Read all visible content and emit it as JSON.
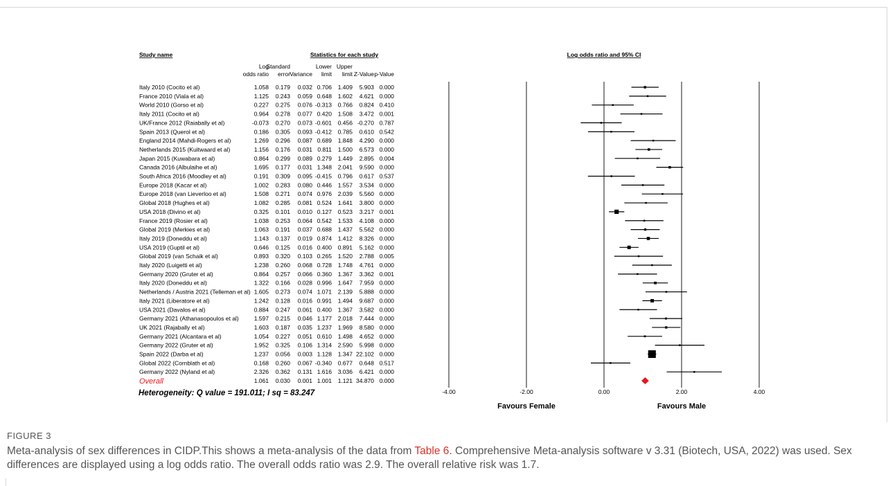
{
  "chart_data": {
    "type": "forest",
    "headers": {
      "study_name": "Study name",
      "stats_group": "Statistics for each study",
      "plot_title": "Log odds ratio and 95% CI",
      "columns": [
        [
          "Log",
          "odds ratio"
        ],
        [
          "Standard",
          "error"
        ],
        [
          "",
          "Variance"
        ],
        [
          "Lower",
          "limit"
        ],
        [
          "Upper",
          "limit"
        ],
        [
          "",
          "Z-Value"
        ],
        [
          "",
          "p-Value"
        ]
      ]
    },
    "studies": [
      {
        "name": "Italy 2010 (Cocito et al)",
        "values": [
          "1.058",
          "0.179",
          "0.032",
          "0.706",
          "1.409",
          "5.903",
          "0.000"
        ],
        "or": 1.058,
        "lo": 0.706,
        "hi": 1.409,
        "se": 0.179
      },
      {
        "name": "France 2010 (Viala et al)",
        "values": [
          "1.125",
          "0.243",
          "0.059",
          "0.648",
          "1.602",
          "4.621",
          "0.000"
        ],
        "or": 1.125,
        "lo": 0.648,
        "hi": 1.602,
        "se": 0.243
      },
      {
        "name": "World 2010 (Gorso et al)",
        "values": [
          "0.227",
          "0.275",
          "0.076",
          "-0.313",
          "0.766",
          "0.824",
          "0.410"
        ],
        "or": 0.227,
        "lo": -0.313,
        "hi": 0.766,
        "se": 0.275
      },
      {
        "name": "Italy 2011 (Cocito et al)",
        "values": [
          "0.964",
          "0.278",
          "0.077",
          "0.420",
          "1.508",
          "3.472",
          "0.001"
        ],
        "or": 0.964,
        "lo": 0.42,
        "hi": 1.508,
        "se": 0.278
      },
      {
        "name": "UK/France 2012 (Raiabally et al)",
        "values": [
          "-0.073",
          "0.270",
          "0.073",
          "-0.601",
          "0.456",
          "-0.270",
          "0.787"
        ],
        "or": -0.073,
        "lo": -0.601,
        "hi": 0.456,
        "se": 0.27
      },
      {
        "name": "Spain 2013 (Querol et al)",
        "values": [
          "0.186",
          "0.305",
          "0.093",
          "-0.412",
          "0.785",
          "0.610",
          "0.542"
        ],
        "or": 0.186,
        "lo": -0.412,
        "hi": 0.785,
        "se": 0.305
      },
      {
        "name": "England 2014 (Mahdi-Rogers et al)",
        "values": [
          "1.269",
          "0.296",
          "0.087",
          "0.689",
          "1.848",
          "4.290",
          "0.000"
        ],
        "or": 1.269,
        "lo": 0.689,
        "hi": 1.848,
        "se": 0.296
      },
      {
        "name": "Netherlands 2015 (Kuitwaard et al)",
        "values": [
          "1.156",
          "0.176",
          "0.031",
          "0.811",
          "1.500",
          "6.573",
          "0.000"
        ],
        "or": 1.156,
        "lo": 0.811,
        "hi": 1.5,
        "se": 0.176
      },
      {
        "name": "Japan 2015 (Kuwabara et al)",
        "values": [
          "0.864",
          "0.299",
          "0.089",
          "0.279",
          "1.449",
          "2.895",
          "0.004"
        ],
        "or": 0.864,
        "lo": 0.279,
        "hi": 1.449,
        "se": 0.299
      },
      {
        "name": "Canada 2016 (Albulaihe et al)",
        "values": [
          "1.695",
          "0.177",
          "0.031",
          "1.348",
          "2.041",
          "9.590",
          "0.000"
        ],
        "or": 1.695,
        "lo": 1.348,
        "hi": 2.041,
        "se": 0.177
      },
      {
        "name": "South Africa 2016 (Moodley et al)",
        "values": [
          "0.191",
          "0.309",
          "0.095",
          "-0.415",
          "0.796",
          "0.617",
          "0.537"
        ],
        "or": 0.191,
        "lo": -0.415,
        "hi": 0.796,
        "se": 0.309
      },
      {
        "name": "Europe 2018 (Kacar et al)",
        "values": [
          "1.002",
          "0.283",
          "0.080",
          "0.446",
          "1.557",
          "3.534",
          "0.000"
        ],
        "or": 1.002,
        "lo": 0.446,
        "hi": 1.557,
        "se": 0.283
      },
      {
        "name": "Europe 2018 (van Lieverloo et al)",
        "values": [
          "1.508",
          "0.271",
          "0.074",
          "0.976",
          "2.039",
          "5.560",
          "0.000"
        ],
        "or": 1.508,
        "lo": 0.976,
        "hi": 2.039,
        "se": 0.271
      },
      {
        "name": "Global 2018 (Hughes et al)",
        "values": [
          "1.082",
          "0.285",
          "0.081",
          "0.524",
          "1.641",
          "3.800",
          "0.000"
        ],
        "or": 1.082,
        "lo": 0.524,
        "hi": 1.641,
        "se": 0.285
      },
      {
        "name": "USA 2018 (Divino et al)",
        "values": [
          "0.325",
          "0.101",
          "0.010",
          "0.127",
          "0.523",
          "3.217",
          "0.001"
        ],
        "or": 0.325,
        "lo": 0.127,
        "hi": 0.523,
        "se": 0.101
      },
      {
        "name": "France 2019 (Rosier et al)",
        "values": [
          "1.038",
          "0.253",
          "0.064",
          "0.542",
          "1.533",
          "4.108",
          "0.000"
        ],
        "or": 1.038,
        "lo": 0.542,
        "hi": 1.533,
        "se": 0.253
      },
      {
        "name": "Global 2019 (Merkies et al)",
        "values": [
          "1.063",
          "0.191",
          "0.037",
          "0.688",
          "1.437",
          "5.562",
          "0.000"
        ],
        "or": 1.063,
        "lo": 0.688,
        "hi": 1.437,
        "se": 0.191
      },
      {
        "name": "Italy 2019 (Doneddu et al)",
        "values": [
          "1.143",
          "0.137",
          "0.019",
          "0.874",
          "1.412",
          "8.326",
          "0.000"
        ],
        "or": 1.143,
        "lo": 0.874,
        "hi": 1.412,
        "se": 0.137
      },
      {
        "name": "USA 2019 (Guptil et al)",
        "values": [
          "0.646",
          "0.125",
          "0.016",
          "0.400",
          "0.891",
          "5.162",
          "0.000"
        ],
        "or": 0.646,
        "lo": 0.4,
        "hi": 0.891,
        "se": 0.125
      },
      {
        "name": "Global 2019 (van Schaik et al)",
        "values": [
          "0.893",
          "0.320",
          "0.103",
          "0.265",
          "1.520",
          "2.788",
          "0.005"
        ],
        "or": 0.893,
        "lo": 0.265,
        "hi": 1.52,
        "se": 0.32
      },
      {
        "name": "Italy 2020 (Luigetti et al)",
        "values": [
          "1.238",
          "0.260",
          "0.068",
          "0.728",
          "1.748",
          "4.761",
          "0.000"
        ],
        "or": 1.238,
        "lo": 0.728,
        "hi": 1.748,
        "se": 0.26
      },
      {
        "name": "Germany 2020 (Gruter et al)",
        "values": [
          "0.864",
          "0.257",
          "0.066",
          "0.360",
          "1.367",
          "3.362",
          "0.001"
        ],
        "or": 0.864,
        "lo": 0.36,
        "hi": 1.367,
        "se": 0.257
      },
      {
        "name": "Italy 2020 (Doneddu et al)",
        "values": [
          "1.322",
          "0.166",
          "0.028",
          "0.996",
          "1.647",
          "7.959",
          "0.000"
        ],
        "or": 1.322,
        "lo": 0.996,
        "hi": 1.647,
        "se": 0.166
      },
      {
        "name": "Netherlands / Austria 2021 (Telleman et al)",
        "values": [
          "1.605",
          "0.273",
          "0.074",
          "1.071",
          "2.139",
          "5.888",
          "0.000"
        ],
        "or": 1.605,
        "lo": 1.071,
        "hi": 2.139,
        "se": 0.273
      },
      {
        "name": "Italy 2021 (Liberatore et al)",
        "values": [
          "1.242",
          "0.128",
          "0.016",
          "0.991",
          "1.494",
          "9.687",
          "0.000"
        ],
        "or": 1.242,
        "lo": 0.991,
        "hi": 1.494,
        "se": 0.128
      },
      {
        "name": "USA 2021 (Davalos et al)",
        "values": [
          "0.884",
          "0.247",
          "0.061",
          "0.400",
          "1.367",
          "3.582",
          "0.000"
        ],
        "or": 0.884,
        "lo": 0.4,
        "hi": 1.367,
        "se": 0.247
      },
      {
        "name": "Germany 2021 (Athanasopoulos et al)",
        "values": [
          "1.597",
          "0.215",
          "0.046",
          "1.177",
          "2.018",
          "7.444",
          "0.000"
        ],
        "or": 1.597,
        "lo": 1.177,
        "hi": 2.018,
        "se": 0.215
      },
      {
        "name": "UK 2021 (Rajabally et al)",
        "values": [
          "1.603",
          "0.187",
          "0.035",
          "1.237",
          "1.969",
          "8.580",
          "0.000"
        ],
        "or": 1.603,
        "lo": 1.237,
        "hi": 1.969,
        "se": 0.187
      },
      {
        "name": "Germany 2021 (Alcantara et al)",
        "values": [
          "1.054",
          "0.227",
          "0.051",
          "0.610",
          "1.498",
          "4.652",
          "0.000"
        ],
        "or": 1.054,
        "lo": 0.61,
        "hi": 1.498,
        "se": 0.227
      },
      {
        "name": "Germany 2022 (Gruter et al)",
        "values": [
          "1.952",
          "0.325",
          "0.106",
          "1.314",
          "2.590",
          "5.998",
          "0.000"
        ],
        "or": 1.952,
        "lo": 1.314,
        "hi": 2.59,
        "se": 0.325
      },
      {
        "name": "Spain 2022 (Darba et al)",
        "values": [
          "1.237",
          "0.056",
          "0.003",
          "1.128",
          "1.347",
          "22.102",
          "0.000"
        ],
        "or": 1.237,
        "lo": 1.128,
        "hi": 1.347,
        "se": 0.056
      },
      {
        "name": "Global 2022 (Cornblath et al)",
        "values": [
          "0.168",
          "0.260",
          "0.067",
          "-0.340",
          "0.677",
          "0.648",
          "0.517"
        ],
        "or": 0.168,
        "lo": -0.34,
        "hi": 0.677,
        "se": 0.26
      },
      {
        "name": "Germany 2022 (Nyland et al)",
        "values": [
          "2.326",
          "0.362",
          "0.131",
          "1.616",
          "3.036",
          "6.421",
          "0.000"
        ],
        "or": 2.326,
        "lo": 1.616,
        "hi": 3.036,
        "se": 0.362
      }
    ],
    "overall": {
      "name": "Overall",
      "values": [
        "1.061",
        "0.030",
        "0.001",
        "1.001",
        "1.121",
        "34.870",
        "0.000"
      ],
      "or": 1.061,
      "lo": 1.001,
      "hi": 1.121,
      "color": "#e8161b"
    },
    "heterogeneity": "Heterogeneity: Q value = 191.011; I sq = 83.247",
    "x_axis": {
      "range": [
        -4,
        4
      ],
      "ticks": [
        -4,
        -2,
        0,
        2,
        4
      ],
      "tick_labels": [
        "-4.00",
        "-2.00",
        "0.00",
        "2.00",
        "4.00"
      ]
    },
    "favours_left": "Favours Female",
    "favours_right": "Favours Male"
  },
  "caption": {
    "label": "FIGURE 3",
    "text_before_link": "Meta-analysis of sex differences in CIDP.This shows a meta-analysis of the data from ",
    "link_text": "Table 6",
    "text_after_link": ". Comprehensive Meta-analysis software v 3.31 (Biotech, USA, 2022) was used. Sex differences are displayed using a log odds ratio. The overall odds ratio was 2.9. The overall relative risk was 1.7.",
    "link_color": "#d9302b"
  }
}
